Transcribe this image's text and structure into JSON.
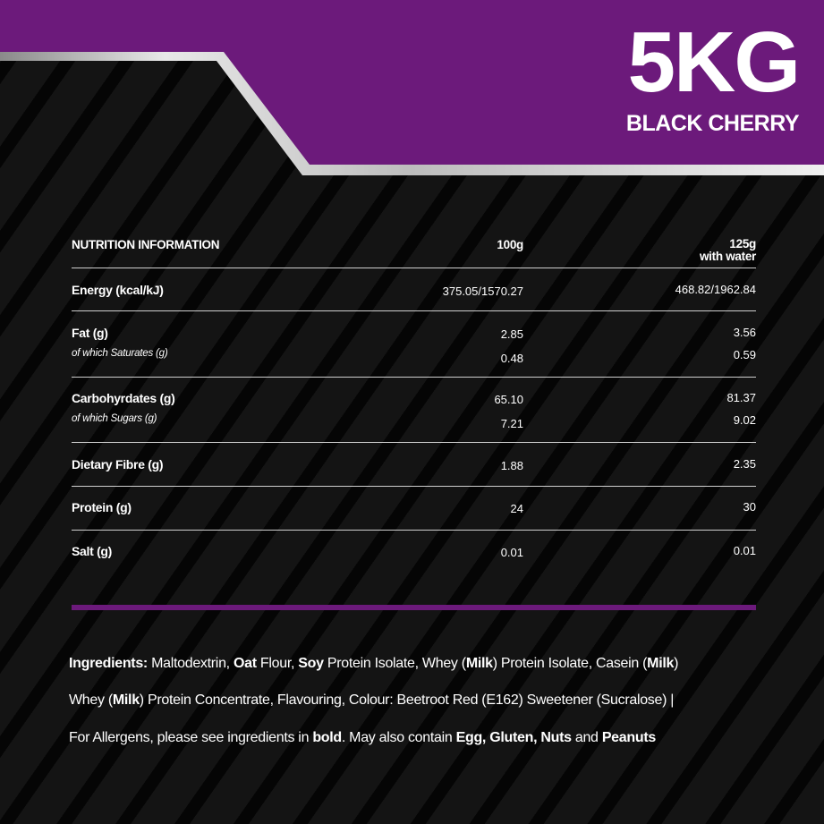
{
  "header": {
    "size": "5KG",
    "flavour": "BLACK CHERRY",
    "accent": "#6c1a7b"
  },
  "table": {
    "title": "NUTRITION INFORMATION",
    "col1": "100g",
    "col2_line1": "125g",
    "col2_line2": "with water",
    "rows": [
      {
        "label": "Energy (kcal/kJ)",
        "v1": "375.05/1570.27",
        "v2": "468.82/1962.84"
      },
      {
        "label": "Fat (g)",
        "v1": "2.85",
        "v2": "3.56",
        "sub": "of which Saturates (g)",
        "sv1": "0.48",
        "sv2": "0.59"
      },
      {
        "label": "Carbohyrdates (g)",
        "v1": "65.10",
        "v2": "81.37",
        "sub": "of which Sugars (g)",
        "sv1": "7.21",
        "sv2": "9.02"
      },
      {
        "label": "Dietary Fibre (g)",
        "v1": "1.88",
        "v2": "2.35"
      },
      {
        "label": "Protein (g)",
        "v1": "24",
        "v2": "30"
      },
      {
        "label": "Salt (g)",
        "v1": "0.01",
        "v2": "0.01"
      }
    ]
  },
  "ingredients": [
    [
      {
        "t": "Ingredients:",
        "b": true
      },
      {
        "t": " Maltodextrin, "
      },
      {
        "t": "Oat",
        "b": true
      },
      {
        "t": " Flour, "
      },
      {
        "t": "Soy",
        "b": true
      },
      {
        "t": " Protein Isolate, Whey ("
      },
      {
        "t": "Milk",
        "b": true
      },
      {
        "t": ") Protein Isolate, Casein ("
      },
      {
        "t": "Milk",
        "b": true
      },
      {
        "t": ")"
      }
    ],
    [
      {
        "t": "Whey  ("
      },
      {
        "t": "Milk",
        "b": true
      },
      {
        "t": ") Protein Concentrate, Flavouring, Colour: Beetroot Red (E162) Sweetener (Sucralose) |"
      }
    ],
    [
      {
        "t": "For Allergens, please see ingredients in "
      },
      {
        "t": "bold",
        "b": true
      },
      {
        "t": ". May also contain "
      },
      {
        "t": "Egg, Gluten, Nuts",
        "b": true
      },
      {
        "t": " and "
      },
      {
        "t": "Peanuts",
        "b": true
      }
    ]
  ]
}
